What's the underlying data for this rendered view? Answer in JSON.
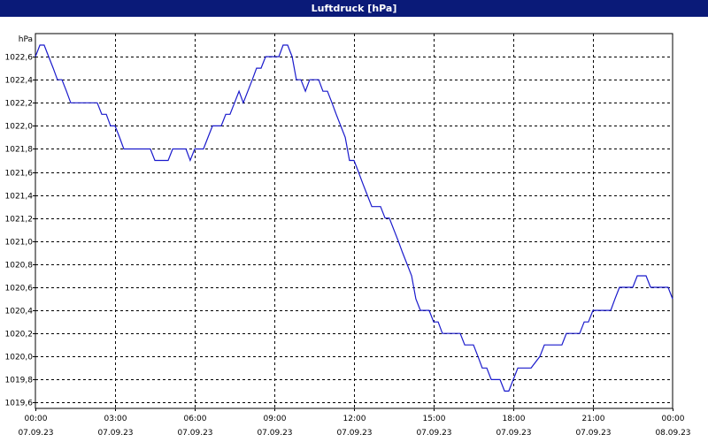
{
  "window": {
    "title": "Luftdruck [hPa]"
  },
  "colors": {
    "title_bar": "#0a1a78",
    "series": "#1a1acc",
    "grid": "#000000",
    "background": "#ffffff"
  },
  "chart_data": {
    "type": "line",
    "title": "Luftdruck [hPa]",
    "ylabel": "hPa",
    "xlabel": "",
    "ylim": [
      1019.55,
      1022.8
    ],
    "y_ticks": [
      "1022,6",
      "1022,4",
      "1022,2",
      "1022,0",
      "1021,8",
      "1021,6",
      "1021,4",
      "1021,2",
      "1021,0",
      "1020,8",
      "1020,6",
      "1020,4",
      "1020,2",
      "1020,0",
      "1019,8",
      "1019,6"
    ],
    "y_tick_values": [
      1022.6,
      1022.4,
      1022.2,
      1022.0,
      1021.8,
      1021.6,
      1021.4,
      1021.2,
      1021.0,
      1020.8,
      1020.6,
      1020.4,
      1020.2,
      1020.0,
      1019.8,
      1019.6
    ],
    "x_ticks": [
      {
        "time": "00:00",
        "date": "07.09.23",
        "hour": 0
      },
      {
        "time": "03:00",
        "date": "07.09.23",
        "hour": 3
      },
      {
        "time": "06:00",
        "date": "07.09.23",
        "hour": 6
      },
      {
        "time": "09:00",
        "date": "07.09.23",
        "hour": 9
      },
      {
        "time": "12:00",
        "date": "07.09.23",
        "hour": 12
      },
      {
        "time": "15:00",
        "date": "07.09.23",
        "hour": 15
      },
      {
        "time": "18:00",
        "date": "07.09.23",
        "hour": 18
      },
      {
        "time": "21:00",
        "date": "07.09.23",
        "hour": 21
      },
      {
        "time": "00:00",
        "date": "08.09.23",
        "hour": 24
      }
    ],
    "xlim": [
      0,
      24
    ],
    "grid": true,
    "series": [
      {
        "points": [
          [
            0.0,
            1022.6
          ],
          [
            0.17,
            1022.7
          ],
          [
            0.33,
            1022.7
          ],
          [
            0.5,
            1022.6
          ],
          [
            0.67,
            1022.5
          ],
          [
            0.83,
            1022.4
          ],
          [
            1.0,
            1022.4
          ],
          [
            1.17,
            1022.3
          ],
          [
            1.33,
            1022.2
          ],
          [
            1.5,
            1022.2
          ],
          [
            1.67,
            1022.2
          ],
          [
            2.0,
            1022.2
          ],
          [
            2.33,
            1022.2
          ],
          [
            2.5,
            1022.1
          ],
          [
            2.67,
            1022.1
          ],
          [
            2.83,
            1022.0
          ],
          [
            3.0,
            1022.0
          ],
          [
            3.17,
            1021.9
          ],
          [
            3.33,
            1021.8
          ],
          [
            3.67,
            1021.8
          ],
          [
            4.0,
            1021.8
          ],
          [
            4.33,
            1021.8
          ],
          [
            4.5,
            1021.7
          ],
          [
            4.67,
            1021.7
          ],
          [
            5.0,
            1021.7
          ],
          [
            5.17,
            1021.8
          ],
          [
            5.5,
            1021.8
          ],
          [
            5.67,
            1021.8
          ],
          [
            5.83,
            1021.7
          ],
          [
            6.0,
            1021.8
          ],
          [
            6.17,
            1021.8
          ],
          [
            6.33,
            1021.8
          ],
          [
            6.5,
            1021.9
          ],
          [
            6.67,
            1022.0
          ],
          [
            7.0,
            1022.0
          ],
          [
            7.17,
            1022.1
          ],
          [
            7.33,
            1022.1
          ],
          [
            7.5,
            1022.2
          ],
          [
            7.67,
            1022.3
          ],
          [
            7.83,
            1022.2
          ],
          [
            8.0,
            1022.3
          ],
          [
            8.17,
            1022.4
          ],
          [
            8.33,
            1022.5
          ],
          [
            8.5,
            1022.5
          ],
          [
            8.67,
            1022.6
          ],
          [
            9.0,
            1022.6
          ],
          [
            9.17,
            1022.6
          ],
          [
            9.33,
            1022.7
          ],
          [
            9.5,
            1022.7
          ],
          [
            9.67,
            1022.6
          ],
          [
            9.83,
            1022.4
          ],
          [
            10.0,
            1022.4
          ],
          [
            10.17,
            1022.3
          ],
          [
            10.33,
            1022.4
          ],
          [
            10.67,
            1022.4
          ],
          [
            10.83,
            1022.3
          ],
          [
            11.0,
            1022.3
          ],
          [
            11.17,
            1022.2
          ],
          [
            11.33,
            1022.1
          ],
          [
            11.5,
            1022.0
          ],
          [
            11.67,
            1021.9
          ],
          [
            11.83,
            1021.7
          ],
          [
            12.0,
            1021.7
          ],
          [
            12.17,
            1021.6
          ],
          [
            12.33,
            1021.5
          ],
          [
            12.5,
            1021.4
          ],
          [
            12.67,
            1021.3
          ],
          [
            12.83,
            1021.3
          ],
          [
            13.0,
            1021.3
          ],
          [
            13.17,
            1021.2
          ],
          [
            13.33,
            1021.2
          ],
          [
            13.5,
            1021.1
          ],
          [
            13.67,
            1021.0
          ],
          [
            13.83,
            1020.9
          ],
          [
            14.0,
            1020.8
          ],
          [
            14.17,
            1020.7
          ],
          [
            14.33,
            1020.5
          ],
          [
            14.5,
            1020.4
          ],
          [
            14.67,
            1020.4
          ],
          [
            14.83,
            1020.4
          ],
          [
            15.0,
            1020.3
          ],
          [
            15.17,
            1020.3
          ],
          [
            15.33,
            1020.2
          ],
          [
            15.67,
            1020.2
          ],
          [
            16.0,
            1020.2
          ],
          [
            16.17,
            1020.1
          ],
          [
            16.5,
            1020.1
          ],
          [
            16.67,
            1020.0
          ],
          [
            16.83,
            1019.9
          ],
          [
            17.0,
            1019.9
          ],
          [
            17.17,
            1019.8
          ],
          [
            17.33,
            1019.8
          ],
          [
            17.5,
            1019.8
          ],
          [
            17.67,
            1019.7
          ],
          [
            17.83,
            1019.7
          ],
          [
            18.0,
            1019.8
          ],
          [
            18.17,
            1019.9
          ],
          [
            18.33,
            1019.9
          ],
          [
            18.67,
            1019.9
          ],
          [
            19.0,
            1020.0
          ],
          [
            19.17,
            1020.1
          ],
          [
            19.5,
            1020.1
          ],
          [
            19.83,
            1020.1
          ],
          [
            20.0,
            1020.2
          ],
          [
            20.33,
            1020.2
          ],
          [
            20.5,
            1020.2
          ],
          [
            20.67,
            1020.3
          ],
          [
            20.83,
            1020.3
          ],
          [
            21.0,
            1020.4
          ],
          [
            21.33,
            1020.4
          ],
          [
            21.67,
            1020.4
          ],
          [
            21.83,
            1020.5
          ],
          [
            22.0,
            1020.6
          ],
          [
            22.33,
            1020.6
          ],
          [
            22.5,
            1020.6
          ],
          [
            22.67,
            1020.7
          ],
          [
            22.83,
            1020.7
          ],
          [
            23.0,
            1020.7
          ],
          [
            23.17,
            1020.6
          ],
          [
            23.5,
            1020.6
          ],
          [
            23.83,
            1020.6
          ],
          [
            24.0,
            1020.5
          ]
        ]
      }
    ]
  }
}
